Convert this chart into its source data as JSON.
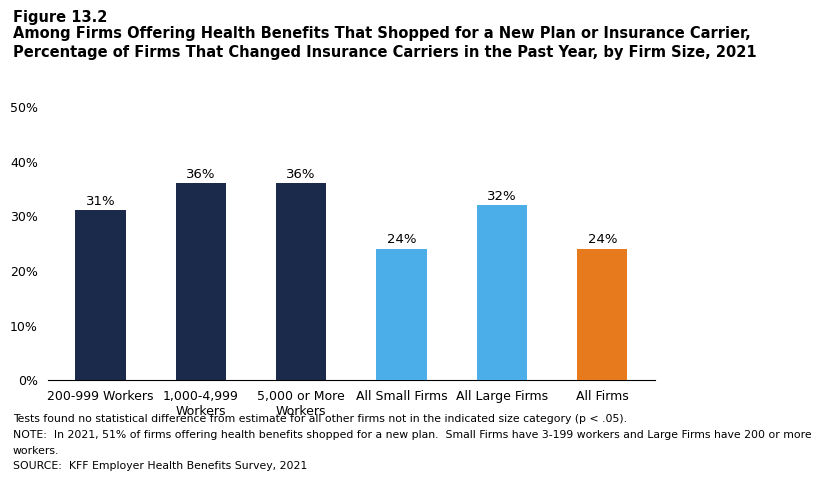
{
  "figure_label": "Figure 13.2",
  "title_line1": "Among Firms Offering Health Benefits That Shopped for a New Plan or Insurance Carrier,",
  "title_line2": "Percentage of Firms That Changed Insurance Carriers in the Past Year, by Firm Size, 2021",
  "categories": [
    "200-999 Workers",
    "1,000-4,999\nWorkers",
    "5,000 or More\nWorkers",
    "All Small Firms",
    "All Large Firms",
    "All Firms"
  ],
  "values": [
    31,
    36,
    36,
    24,
    32,
    24
  ],
  "bar_colors": [
    "#1b2a4a",
    "#1b2a4a",
    "#1b2a4a",
    "#4baee8",
    "#4baee8",
    "#e87a1e"
  ],
  "ylim": [
    0,
    50
  ],
  "yticks": [
    0,
    10,
    20,
    30,
    40,
    50
  ],
  "ytick_labels": [
    "0%",
    "10%",
    "20%",
    "30%",
    "40%",
    "50%"
  ],
  "footnote1": "Tests found no statistical difference from estimate for all other firms not in the indicated size category (p < .05).",
  "footnote2": "NOTE:  In 2021, 51% of firms offering health benefits shopped for a new plan.  Small Firms have 3-199 workers and Large Firms have 200 or more",
  "footnote3": "workers.",
  "footnote4": "SOURCE:  KFF Employer Health Benefits Survey, 2021",
  "bar_label_fontsize": 9.5,
  "axis_fontsize": 9,
  "title_fontsize": 10.5,
  "figure_label_fontsize": 10.5,
  "bar_width": 0.5
}
